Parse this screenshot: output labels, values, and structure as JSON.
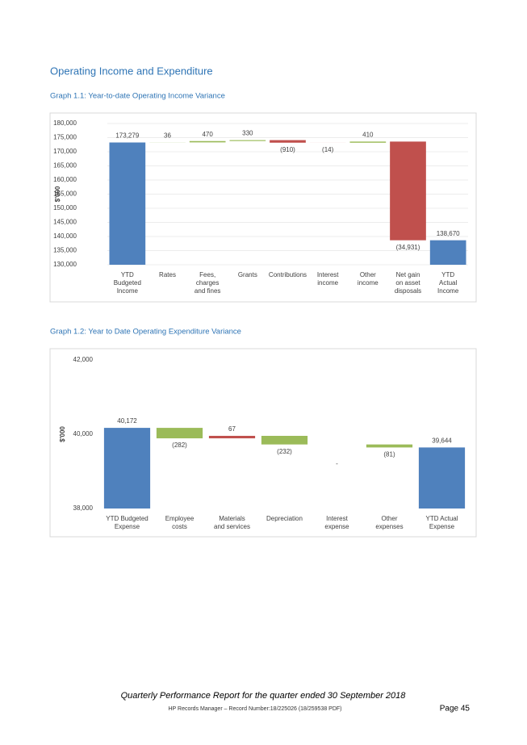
{
  "heading": "Operating Income and Expenditure",
  "chart_data": [
    {
      "type": "waterfall",
      "title": "Graph 1.1:  Year-to-date Operating Income Variance",
      "y_label": "$'000",
      "categories": [
        "YTD\nBudgeted\nIncome",
        "Rates",
        "Fees,\ncharges\nand fines",
        "Grants",
        "Contributions",
        "Interest\nincome",
        "Other\nincome",
        "Net gain\non asset\ndisposals",
        "YTD\nActual\nIncome"
      ],
      "values": [
        173279,
        36,
        470,
        330,
        -910,
        -14,
        410,
        -34931,
        138670
      ],
      "value_labels": [
        "173,279",
        "36",
        "470",
        "330",
        "(910)",
        "(14)",
        "410",
        "(34,931)",
        "138,670"
      ],
      "measure": [
        "total",
        "relative",
        "relative",
        "relative",
        "relative",
        "relative",
        "relative",
        "relative",
        "total"
      ],
      "colors": [
        "#4f81bd",
        "#9bbb59",
        "#9bbb59",
        "#9bbb59",
        "#c0504d",
        "#c0504d",
        "#9bbb59",
        "#c0504d",
        "#4f81bd"
      ],
      "ylim": [
        130000,
        180000
      ],
      "yticks": [
        {
          "value": 130000,
          "label": "130,000"
        },
        {
          "value": 135000,
          "label": "135,000"
        },
        {
          "value": 140000,
          "label": "140,000"
        },
        {
          "value": 145000,
          "label": "145,000"
        },
        {
          "value": 150000,
          "label": "150,000"
        },
        {
          "value": 155000,
          "label": "155,000"
        },
        {
          "value": 160000,
          "label": "160,000"
        },
        {
          "value": 165000,
          "label": "165,000"
        },
        {
          "value": 170000,
          "label": "170,000"
        },
        {
          "value": 175000,
          "label": "175,000"
        },
        {
          "value": 180000,
          "label": "180,000"
        }
      ],
      "grid": true
    },
    {
      "type": "waterfall",
      "title": "Graph 1.2:  Year to Date Operating Expenditure Variance",
      "y_label": "$'000",
      "categories": [
        "YTD Budgeted\nExpense",
        "Employee\ncosts",
        "Materials\nand services",
        "Depreciation",
        "Interest\nexpense",
        "Other\nexpenses",
        "YTD Actual\nExpense"
      ],
      "values": [
        40172,
        -282,
        67,
        -232,
        0,
        -81,
        39644
      ],
      "value_labels": [
        "40,172",
        "(282)",
        "67",
        "(232)",
        "-",
        "(81)",
        "39,644"
      ],
      "measure": [
        "total",
        "relative",
        "relative",
        "relative",
        "relative",
        "relative",
        "total"
      ],
      "colors": [
        "#4f81bd",
        "#9bbb59",
        "#c0504d",
        "#9bbb59",
        "#9bbb59",
        "#9bbb59",
        "#4f81bd"
      ],
      "ylim": [
        38000,
        42000
      ],
      "yticks": [
        {
          "value": 38000,
          "label": "38,000"
        },
        {
          "value": 40000,
          "label": "40,000"
        },
        {
          "value": 42000,
          "label": "42,000"
        }
      ],
      "grid": false
    }
  ],
  "footer": {
    "report": "Quarterly Performance Report for the quarter ended 30 September 2018",
    "record": "HP Records Manager – Record Number:18/225026 (18/259538 PDF)",
    "page": "Page 45"
  }
}
